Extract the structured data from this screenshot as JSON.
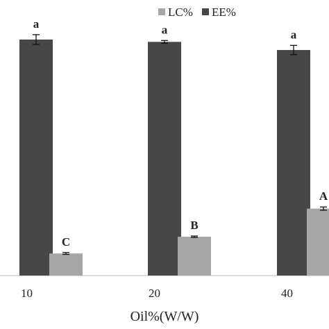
{
  "chart_data": {
    "type": "bar",
    "title": "",
    "xlabel": "Oil%(W/W)",
    "ylabel": "",
    "categories": [
      "10",
      "20",
      "40"
    ],
    "ylim": [
      0,
      100
    ],
    "grid": false,
    "legend_position": "top-right",
    "series": [
      {
        "name": "LC%",
        "color": "#a6a6a6",
        "values": [
          9.5,
          16.7,
          28.8
        ],
        "errors": [
          0.4,
          0.3,
          0.7
        ],
        "labels": [
          "C",
          "B",
          "A"
        ]
      },
      {
        "name": "EE%",
        "color": "#474747",
        "values": [
          101.5,
          100.5,
          97.0
        ],
        "errors": [
          2.1,
          0.6,
          2.0
        ],
        "labels": [
          "a",
          "a",
          "a"
        ]
      }
    ]
  }
}
